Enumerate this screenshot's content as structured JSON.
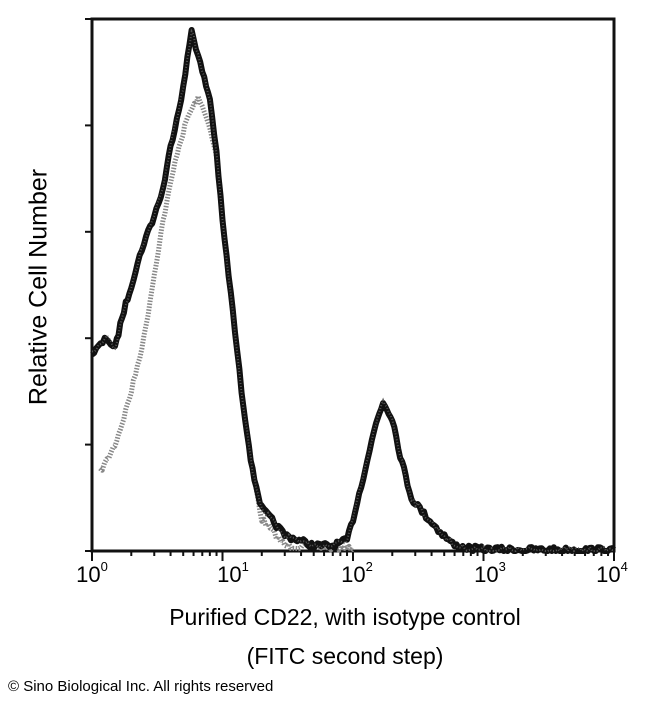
{
  "chart_data": {
    "type": "line",
    "title": "",
    "xlabel": "Purified CD22, with isotype control",
    "xlabel_line2": "(FITC second step)",
    "ylabel": "Relative Cell Number",
    "x_scale": "log",
    "xlim": [
      1,
      10000
    ],
    "ylim": [
      0,
      100
    ],
    "x_ticks": [
      {
        "base": "10",
        "exp": "0"
      },
      {
        "base": "10",
        "exp": "1"
      },
      {
        "base": "10",
        "exp": "2"
      },
      {
        "base": "10",
        "exp": "3"
      },
      {
        "base": "10",
        "exp": "4"
      }
    ],
    "y_ticks_unlabeled": [
      0,
      20,
      40,
      60,
      80,
      100
    ],
    "grid": false,
    "series": [
      {
        "role": "CD22 stained",
        "color": "#111111",
        "x": [
          1.0,
          1.3,
          1.5,
          1.7,
          2.0,
          2.5,
          3.0,
          3.5,
          4.0,
          5.0,
          5.8,
          7.0,
          8.0,
          9.0,
          10,
          12,
          14,
          17,
          20,
          30,
          50,
          70,
          90,
          100,
          120,
          150,
          170,
          200,
          230,
          280,
          350,
          450,
          600,
          800,
          1000,
          3000,
          10000
        ],
        "y": [
          37,
          40,
          38,
          44,
          50,
          58,
          63,
          68,
          76,
          87,
          98,
          90,
          85,
          75,
          62,
          45,
          30,
          15,
          8,
          3,
          1,
          1,
          2,
          6,
          14,
          24,
          28,
          25,
          18,
          10,
          7,
          4,
          1,
          0.5,
          0.3,
          0.2,
          0.2
        ]
      },
      {
        "role": "isotype control",
        "color": "#888888",
        "x": [
          1.15,
          1.3,
          1.5,
          1.7,
          2.0,
          2.5,
          3.0,
          3.5,
          4.5,
          5.5,
          6.5,
          7.5,
          9.0,
          10,
          12,
          14,
          17,
          20,
          30,
          100
        ],
        "y": [
          15,
          17,
          20,
          24,
          30,
          40,
          52,
          62,
          75,
          82,
          85,
          82,
          74,
          62,
          45,
          30,
          15,
          6,
          1,
          0.5
        ]
      }
    ]
  },
  "copyright": "© Sino Biological Inc. All rights reserved"
}
